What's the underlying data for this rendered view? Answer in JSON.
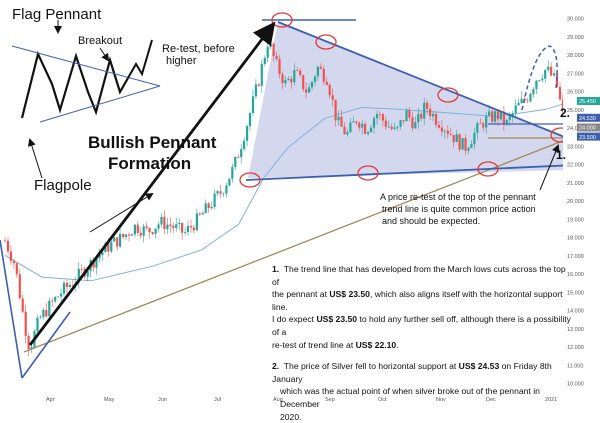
{
  "diagram": {
    "flag_pennant": "Flag Pennant",
    "breakout": "Breakout",
    "retest_line1": "Re-test, before",
    "retest_line2": "higher",
    "title_line1": "Bullish Pennant",
    "title_line2": "Formation",
    "flagpole": "Flagpole"
  },
  "annotation": {
    "line1": "A price re-test of the top of the pennant",
    "line2": "trend line is quite common price action",
    "line3": "and should be expected."
  },
  "notes": {
    "note1_num": "1.",
    "note1_a": "The trend line that has developed from the March lows cuts across the top of",
    "note1_b1": "the pennant at ",
    "note1_b_val": "US$ 23.50",
    "note1_b2": ", which also aligns itself with the horizontal support line.",
    "note1_c1": "I do expect ",
    "note1_c_val": "US$ 23.50",
    "note1_c2": " to hold any further sell off,  although there is a possibility of a",
    "note1_d1": "re-test of trend line at ",
    "note1_d_val": "US$ 22.10",
    "note1_d2": ".",
    "note2_num": "2.",
    "note2_a1": "The price of Silver fell to horizontal support at ",
    "note2_a_val": "US$ 24.53",
    "note2_a2": " on Friday 8th January",
    "note2_b": "which was the actual point of when silver broke out of the pennant in December",
    "note2_c": "2020."
  },
  "markers": {
    "m1": "1.",
    "m2": "2."
  },
  "colors": {
    "up": "#26a69a",
    "down": "#ef5350",
    "pennant_fill": "#c5cbe8",
    "trend_blue": "#3d5fb0",
    "trend_tan": "#a08a5a",
    "circle_red": "#e53935",
    "arrow": "#111111",
    "ma_line": "#7fb3d9"
  },
  "chart_data": {
    "type": "candlestick",
    "x_tick_labels": [
      "Apr",
      "May",
      "Jun",
      "Jul",
      "Aug",
      "Sep",
      "Oct",
      "Nov",
      "Dec",
      "2021"
    ],
    "y_tick_labels": [
      "30.000",
      "29.000",
      "28.000",
      "27.000",
      "26.000",
      "25.000",
      "24.000",
      "23.000",
      "22.000",
      "21.000",
      "20.000",
      "19.000",
      "18.000",
      "17.000",
      "16.000",
      "15.000",
      "14.000",
      "13.000",
      "12.000",
      "11.000",
      "10.000"
    ],
    "ylim": [
      10,
      30
    ],
    "price_tags": [
      {
        "label": "25.450",
        "value": 25.45,
        "color": "#26a69a"
      },
      {
        "label": "24.530",
        "value": 24.53,
        "color": "#3d5fb0"
      },
      {
        "label": "24.000",
        "value": 24.0,
        "color": "#888888"
      },
      {
        "label": "23.500",
        "value": 23.5,
        "color": "#3d5fb0"
      }
    ],
    "close_path": [
      [
        0,
        17.8
      ],
      [
        0.04,
        16.5
      ],
      [
        0.08,
        13.2
      ],
      [
        0.1,
        11.9
      ],
      [
        0.14,
        13.5
      ],
      [
        0.18,
        14.2
      ],
      [
        0.23,
        15.0
      ],
      [
        0.28,
        15.6
      ],
      [
        0.33,
        16.3
      ],
      [
        0.38,
        17.0
      ],
      [
        0.43,
        17.6
      ],
      [
        0.48,
        18.0
      ],
      [
        0.53,
        18.6
      ],
      [
        0.58,
        18.3
      ],
      [
        0.63,
        18.8
      ],
      [
        0.68,
        18.6
      ],
      [
        0.73,
        18.2
      ],
      [
        0.78,
        18.9
      ],
      [
        0.83,
        19.7
      ],
      [
        0.88,
        20.5
      ],
      [
        0.93,
        21.8
      ],
      [
        0.98,
        24.0
      ],
      [
        1.03,
        26.5
      ],
      [
        1.07,
        28.8
      ],
      [
        1.1,
        27.5
      ],
      [
        1.14,
        26.4
      ],
      [
        1.18,
        27.0
      ],
      [
        1.23,
        25.9
      ],
      [
        1.27,
        27.3
      ],
      [
        1.31,
        26.7
      ],
      [
        1.35,
        24.3
      ],
      [
        1.39,
        23.6
      ],
      [
        1.43,
        24.5
      ],
      [
        1.47,
        23.9
      ],
      [
        1.51,
        24.8
      ],
      [
        1.55,
        24.2
      ],
      [
        1.59,
        23.7
      ],
      [
        1.63,
        24.8
      ],
      [
        1.67,
        24.1
      ],
      [
        1.71,
        25.2
      ],
      [
        1.75,
        24.5
      ],
      [
        1.79,
        24.0
      ],
      [
        1.83,
        23.4
      ],
      [
        1.87,
        22.9
      ],
      [
        1.91,
        23.7
      ],
      [
        1.95,
        24.4
      ],
      [
        2.0,
        24.7
      ],
      [
        2.04,
        24.2
      ],
      [
        2.08,
        25.1
      ],
      [
        2.12,
        25.6
      ],
      [
        2.16,
        26.7
      ],
      [
        2.2,
        27.2
      ],
      [
        2.24,
        26.5
      ],
      [
        2.27,
        24.5
      ]
    ]
  }
}
